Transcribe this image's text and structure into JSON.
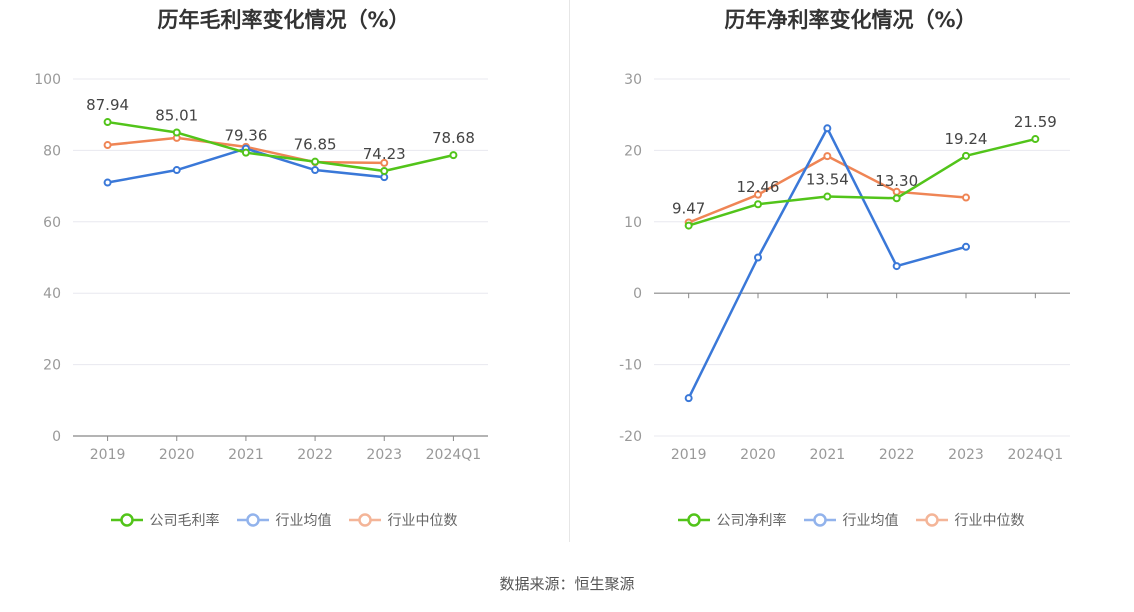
{
  "footer": {
    "source": "数据来源：恒生聚源"
  },
  "colors": {
    "company": "#52c41a",
    "industry_avg": "#3a78d8",
    "industry_median": "#ef8555",
    "grid": "#e8e8ef",
    "axis": "#888888",
    "tick": "#999999",
    "label": "#444444"
  },
  "charts": [
    {
      "title": "历年毛利率变化情况（%）",
      "legend": [
        "公司毛利率",
        "行业均值",
        "行业中位数"
      ]
    },
    {
      "title": "历年净利率变化情况（%）",
      "legend": [
        "公司净利率",
        "行业均值",
        "行业中位数"
      ]
    }
  ],
  "chart_data": [
    {
      "type": "line",
      "title": "历年毛利率变化情况（%）",
      "categories": [
        "2019",
        "2020",
        "2021",
        "2022",
        "2023",
        "2024Q1"
      ],
      "ylim": [
        0,
        100
      ],
      "yticks": [
        0,
        20,
        40,
        60,
        80,
        100
      ],
      "series": [
        {
          "name": "公司毛利率",
          "values": [
            87.94,
            85.01,
            79.36,
            76.85,
            74.23,
            78.68
          ],
          "labels": [
            "87.94",
            "85.01",
            "79.36",
            "76.85",
            "74.23",
            "78.68"
          ]
        },
        {
          "name": "行业均值",
          "values": [
            71.0,
            74.5,
            80.5,
            74.5,
            72.5,
            null
          ]
        },
        {
          "name": "行业中位数",
          "values": [
            81.5,
            83.5,
            81.0,
            76.7,
            76.5,
            null
          ]
        }
      ],
      "grid": true,
      "legend_position": "bottom"
    },
    {
      "type": "line",
      "title": "历年净利率变化情况（%）",
      "categories": [
        "2019",
        "2020",
        "2021",
        "2022",
        "2023",
        "2024Q1"
      ],
      "ylim": [
        -20,
        30
      ],
      "yticks": [
        -20,
        -10,
        0,
        10,
        20,
        30
      ],
      "series": [
        {
          "name": "公司净利率",
          "values": [
            9.47,
            12.46,
            13.54,
            13.3,
            19.24,
            21.59
          ],
          "labels": [
            "9.47",
            "12.46",
            "13.54",
            "13.30",
            "19.24",
            "21.59"
          ]
        },
        {
          "name": "行业均值",
          "values": [
            -14.7,
            5.0,
            23.1,
            3.8,
            6.5,
            null
          ]
        },
        {
          "name": "行业中位数",
          "values": [
            9.9,
            13.8,
            19.2,
            14.2,
            13.4,
            null
          ]
        }
      ],
      "grid": true,
      "legend_position": "bottom"
    }
  ]
}
